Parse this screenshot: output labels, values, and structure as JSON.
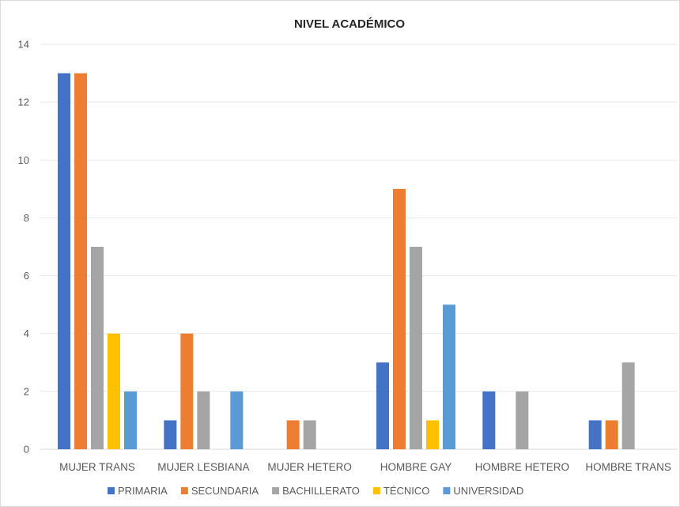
{
  "chart_data": {
    "type": "bar",
    "title": "NIVEL ACADÉMICO",
    "xlabel": "",
    "ylabel": "",
    "ylim": [
      0,
      14
    ],
    "yticks": [
      0,
      2,
      4,
      6,
      8,
      10,
      12,
      14
    ],
    "grid": true,
    "legend_position": "bottom",
    "categories": [
      "MUJER TRANS",
      "MUJER LESBIANA",
      "MUJER HETERO",
      "HOMBRE GAY",
      "HOMBRE HETERO",
      "HOMBRE TRANS"
    ],
    "series": [
      {
        "name": "PRIMARIA",
        "color": "#4472C4",
        "values": [
          13,
          1,
          0,
          3,
          2,
          1
        ]
      },
      {
        "name": "SECUNDARIA",
        "color": "#ED7D31",
        "values": [
          13,
          4,
          1,
          9,
          0,
          1
        ]
      },
      {
        "name": "BACHILLERATO",
        "color": "#A5A5A5",
        "values": [
          7,
          2,
          1,
          7,
          2,
          3
        ]
      },
      {
        "name": "TÉCNICO",
        "color": "#FFC000",
        "values": [
          4,
          0,
          0,
          1,
          0,
          0
        ]
      },
      {
        "name": "UNIVERSIDAD",
        "color": "#5B9BD5",
        "values": [
          2,
          2,
          0,
          5,
          0,
          0
        ]
      }
    ]
  }
}
